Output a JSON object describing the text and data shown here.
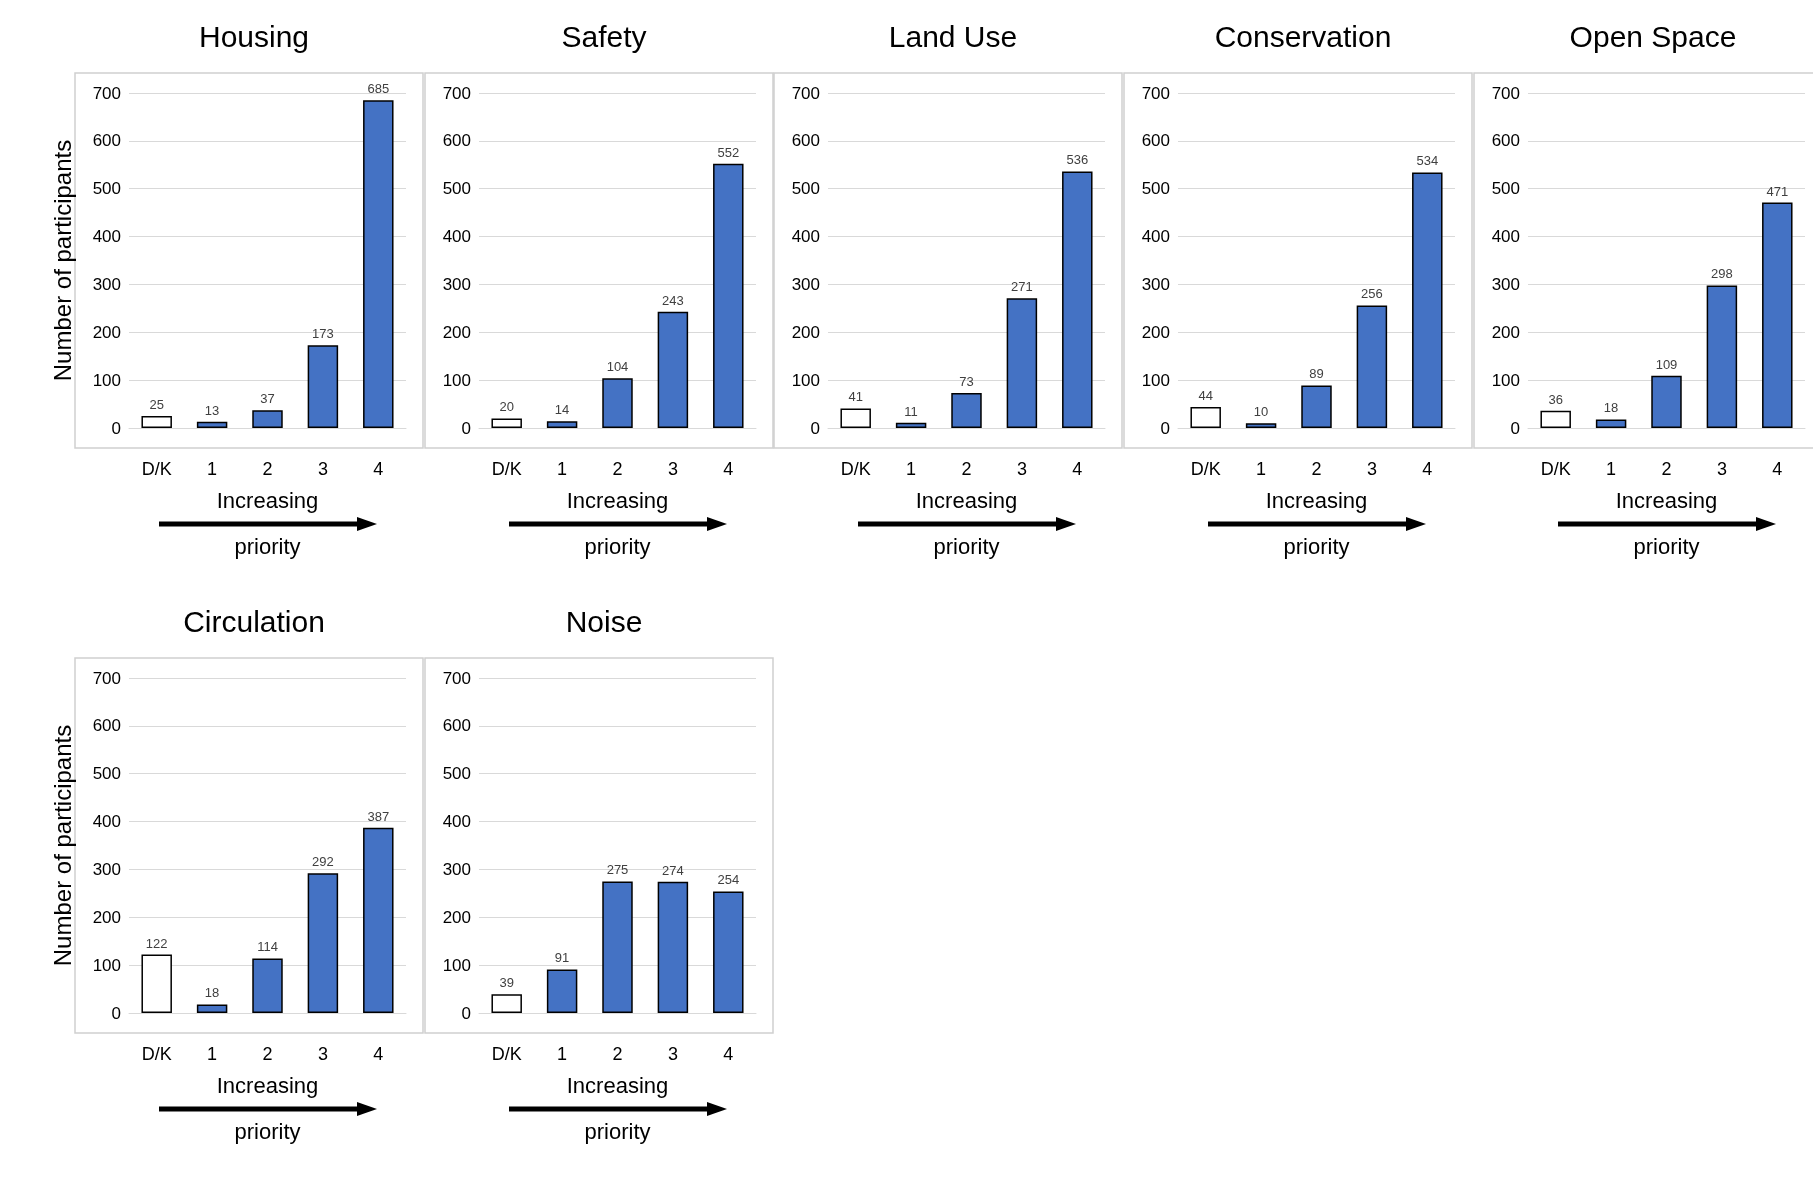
{
  "chart_data": [
    {
      "type": "bar",
      "title": "Housing",
      "ylabel": "Number of participants",
      "xlabel": "Increasing priority",
      "categories": [
        "D/K",
        "1",
        "2",
        "3",
        "4"
      ],
      "values": [
        25,
        13,
        37,
        173,
        685
      ],
      "colors": [
        "#ffffff",
        "#4472c4",
        "#4472c4",
        "#4472c4",
        "#4472c4"
      ],
      "ylim": [
        0,
        700
      ],
      "yticks": [
        0,
        100,
        200,
        300,
        400,
        500,
        600,
        700
      ],
      "grid": "y",
      "data_labels": true
    },
    {
      "type": "bar",
      "title": "Safety",
      "xlabel": "Increasing priority",
      "categories": [
        "D/K",
        "1",
        "2",
        "3",
        "4"
      ],
      "values": [
        20,
        14,
        104,
        243,
        552
      ],
      "colors": [
        "#ffffff",
        "#4472c4",
        "#4472c4",
        "#4472c4",
        "#4472c4"
      ],
      "ylim": [
        0,
        700
      ],
      "yticks": [
        0,
        100,
        200,
        300,
        400,
        500,
        600,
        700
      ],
      "grid": "y",
      "data_labels": true
    },
    {
      "type": "bar",
      "title": "Land Use",
      "xlabel": "Increasing priority",
      "categories": [
        "D/K",
        "1",
        "2",
        "3",
        "4"
      ],
      "values": [
        41,
        11,
        73,
        271,
        536
      ],
      "colors": [
        "#ffffff",
        "#4472c4",
        "#4472c4",
        "#4472c4",
        "#4472c4"
      ],
      "ylim": [
        0,
        700
      ],
      "yticks": [
        0,
        100,
        200,
        300,
        400,
        500,
        600,
        700
      ],
      "grid": "y",
      "data_labels": true
    },
    {
      "type": "bar",
      "title": "Conservation",
      "xlabel": "Increasing priority",
      "categories": [
        "D/K",
        "1",
        "2",
        "3",
        "4"
      ],
      "values": [
        44,
        10,
        89,
        256,
        534
      ],
      "colors": [
        "#ffffff",
        "#4472c4",
        "#4472c4",
        "#4472c4",
        "#4472c4"
      ],
      "ylim": [
        0,
        700
      ],
      "yticks": [
        0,
        100,
        200,
        300,
        400,
        500,
        600,
        700
      ],
      "grid": "y",
      "data_labels": true
    },
    {
      "type": "bar",
      "title": "Open Space",
      "xlabel": "Increasing priority",
      "categories": [
        "D/K",
        "1",
        "2",
        "3",
        "4"
      ],
      "values": [
        36,
        18,
        109,
        298,
        471
      ],
      "colors": [
        "#ffffff",
        "#4472c4",
        "#4472c4",
        "#4472c4",
        "#4472c4"
      ],
      "ylim": [
        0,
        700
      ],
      "yticks": [
        0,
        100,
        200,
        300,
        400,
        500,
        600,
        700
      ],
      "grid": "y",
      "data_labels": true
    },
    {
      "type": "bar",
      "title": "Circulation",
      "ylabel": "Number of participants",
      "xlabel": "Increasing priority",
      "categories": [
        "D/K",
        "1",
        "2",
        "3",
        "4"
      ],
      "values": [
        122,
        18,
        114,
        292,
        387
      ],
      "colors": [
        "#ffffff",
        "#4472c4",
        "#4472c4",
        "#4472c4",
        "#4472c4"
      ],
      "ylim": [
        0,
        700
      ],
      "yticks": [
        0,
        100,
        200,
        300,
        400,
        500,
        600,
        700
      ],
      "grid": "y",
      "data_labels": true
    },
    {
      "type": "bar",
      "title": "Noise",
      "xlabel": "Increasing priority",
      "categories": [
        "D/K",
        "1",
        "2",
        "3",
        "4"
      ],
      "values": [
        39,
        91,
        275,
        274,
        254
      ],
      "colors": [
        "#ffffff",
        "#4472c4",
        "#4472c4",
        "#4472c4",
        "#4472c4"
      ],
      "ylim": [
        0,
        700
      ],
      "yticks": [
        0,
        100,
        200,
        300,
        400,
        500,
        600,
        700
      ],
      "grid": "y",
      "data_labels": true
    }
  ]
}
